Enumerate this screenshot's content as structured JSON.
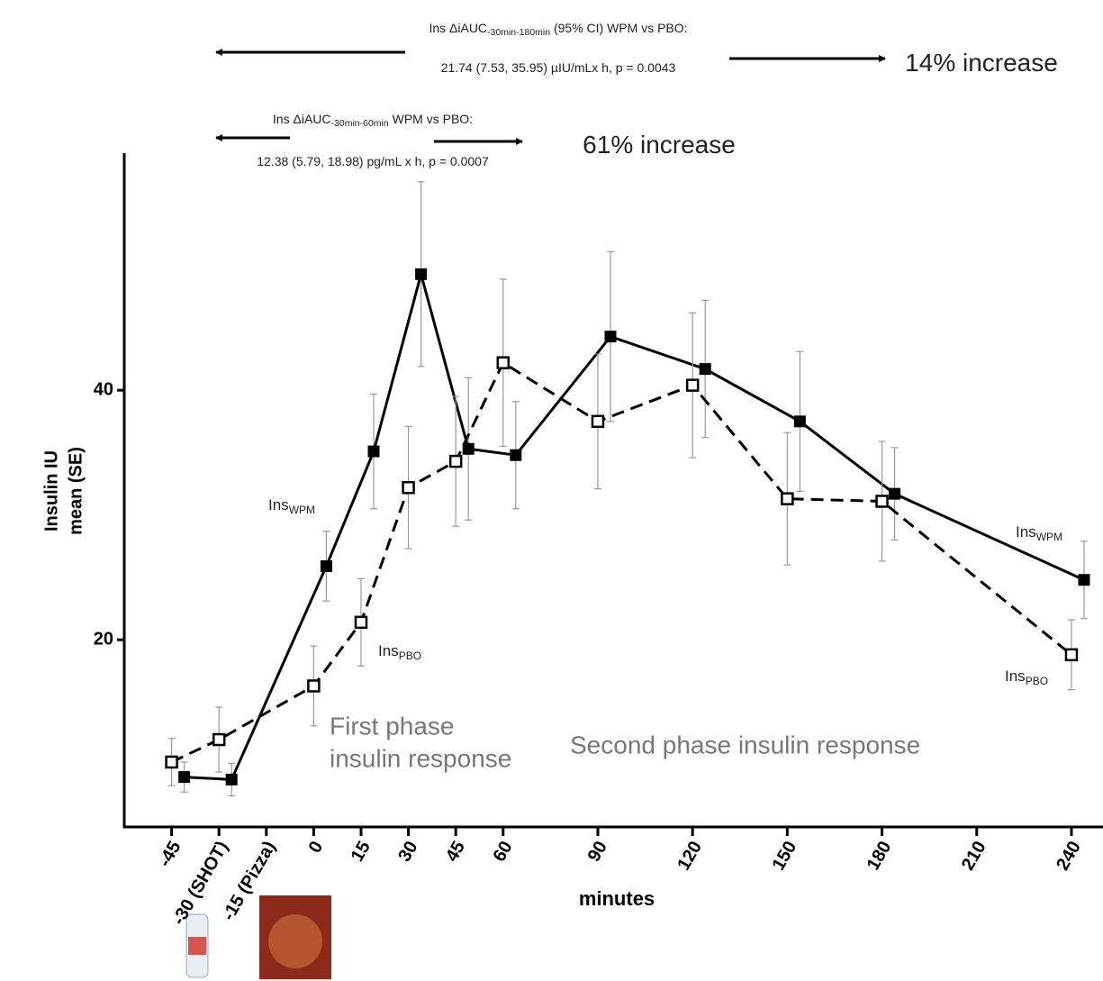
{
  "chart_data": {
    "type": "line",
    "annotations": [
      {
        "text": "Ins ΔiAUC",
        "sub": "-30min-180min",
        "rest": " (95% CI) WPM vs PBO:"
      },
      {
        "text": "21.74 (7.53, 35.95) µIU/mLx h, p = 0.0043"
      },
      {
        "text": "14% increase"
      },
      {
        "text": "Ins ΔiAUC",
        "sub": "-30min-60min",
        "rest": " WPM vs PBO:"
      },
      {
        "text": "12.38 (5.79, 18.98) pg/mL x h, p = 0.0007"
      },
      {
        "text": "61% increase"
      }
    ],
    "phase_labels": [
      [
        "First phase",
        "insulin response"
      ],
      [
        "Second phase insulin response"
      ]
    ],
    "xlabel": "minutes",
    "ylabel": [
      "Insulin IU",
      "mean (SE)"
    ],
    "xlim": [
      -60,
      250
    ],
    "xticks": [
      -45,
      {
        "value": -30,
        "label": "-30 (SHOT)"
      },
      {
        "value": -15,
        "label": "-15 (Pizza)"
      },
      0,
      15,
      30,
      45,
      60,
      90,
      120,
      150,
      180,
      210,
      240
    ],
    "ylim": [
      5,
      59
    ],
    "yticks": [
      20,
      40
    ],
    "series": [
      {
        "name": "WPM",
        "label": "Ins",
        "color": "#000000",
        "dashed": false,
        "filled": true,
        "x": [
          -41,
          -26,
          4,
          19,
          34,
          49,
          64,
          94,
          124,
          154,
          184,
          244
        ],
        "values": [
          9.0,
          8.8,
          25.9,
          35.1,
          49.3,
          35.3,
          34.8,
          44.3,
          41.7,
          37.5,
          31.7,
          24.8
        ],
        "errors": [
          1.2,
          1.3,
          2.8,
          4.6,
          7.4,
          5.7,
          4.3,
          6.8,
          5.5,
          5.6,
          3.7,
          3.1
        ]
      },
      {
        "name": "PBO",
        "label": "Ins",
        "color": "#000000",
        "dashed": true,
        "filled": false,
        "x": [
          -45,
          -30,
          0,
          15,
          30,
          45,
          60,
          90,
          120,
          150,
          180,
          240
        ],
        "values": [
          10.2,
          12.0,
          16.3,
          21.4,
          32.2,
          34.3,
          42.2,
          37.5,
          40.4,
          31.3,
          31.1,
          18.8
        ],
        "errors": [
          1.9,
          2.6,
          3.2,
          3.5,
          4.9,
          5.2,
          6.7,
          5.4,
          5.8,
          5.3,
          4.8,
          2.8
        ]
      }
    ]
  }
}
